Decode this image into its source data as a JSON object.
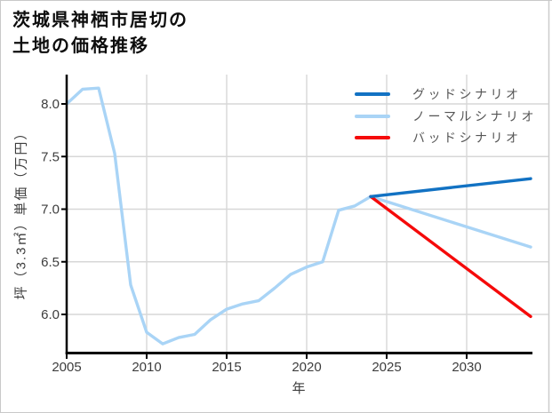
{
  "window": {
    "background": "#ffffff",
    "border_color": "#c9c9c9"
  },
  "header": {
    "title_line1": "茨城県神栖市居切の",
    "title_line2": "土地の価格推移"
  },
  "legend": {
    "items": [
      {
        "label": "グッドシナリオ",
        "color": "#1272c3"
      },
      {
        "label": "ノーマルシナリオ",
        "color": "#a9d4f6"
      },
      {
        "label": "バッドシナリオ",
        "color": "#f50a0a"
      }
    ]
  },
  "chart_data": {
    "type": "line",
    "title": "茨城県神栖市居切の土地の価格推移",
    "xlabel": "年",
    "ylabel": "坪（3.3㎡）単価（万円）",
    "xlim": [
      2005,
      2034
    ],
    "ylim": [
      5.64,
      8.28
    ],
    "xticks": [
      2005,
      2010,
      2015,
      2020,
      2025,
      2030
    ],
    "yticks": [
      6.0,
      6.5,
      7.0,
      7.5,
      8.0
    ],
    "grid": true,
    "legend_position": "upper right",
    "grid_color": "#d7d7d7",
    "axis_color": "#000000",
    "tick_label_color": "#3d3d3d",
    "series": [
      {
        "id": "price-history",
        "name": null,
        "color": "#a9d4f6",
        "x": [
          2005,
          2006,
          2007,
          2008,
          2009,
          2010,
          2011,
          2012,
          2013,
          2014,
          2015,
          2016,
          2017,
          2018,
          2019,
          2020,
          2021,
          2022,
          2023,
          2024
        ],
        "y": [
          8.0,
          8.14,
          8.15,
          7.53,
          6.28,
          5.83,
          5.72,
          5.78,
          5.81,
          5.95,
          6.05,
          6.1,
          6.13,
          6.25,
          6.38,
          6.45,
          6.5,
          6.99,
          7.03,
          7.12
        ]
      },
      {
        "id": "normal-scenario",
        "name": "ノーマルシナリオ",
        "color": "#a9d4f6",
        "x": [
          2024,
          2034
        ],
        "y": [
          7.12,
          6.64
        ]
      },
      {
        "id": "bad-scenario",
        "name": "バッドシナリオ",
        "color": "#f50a0a",
        "x": [
          2024,
          2034
        ],
        "y": [
          7.12,
          5.98
        ]
      },
      {
        "id": "good-scenario",
        "name": "グッドシナリオ",
        "color": "#1272c3",
        "x": [
          2024,
          2034
        ],
        "y": [
          7.12,
          7.29
        ]
      }
    ]
  }
}
